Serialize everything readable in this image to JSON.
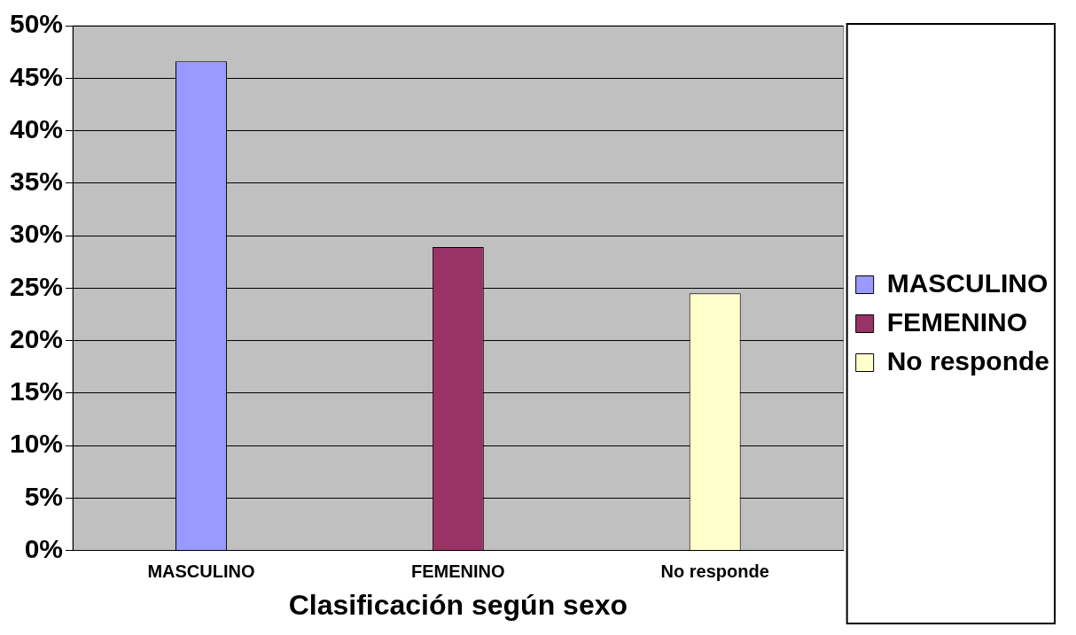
{
  "chart_data": {
    "type": "bar",
    "xlabel": "Clasificación según sexo",
    "categories": [
      "MASCULINO",
      "FEMENINO",
      "No responde"
    ],
    "series": [
      {
        "name": "MASCULINO",
        "color": "#9999ff",
        "values": [
          46.6,
          null,
          null
        ]
      },
      {
        "name": "FEMENINO",
        "color": "#993366",
        "values": [
          null,
          28.9,
          null
        ]
      },
      {
        "name": "No responde",
        "color": "#ffffcc",
        "values": [
          null,
          null,
          24.5
        ]
      }
    ],
    "ylim": [
      0,
      50
    ],
    "yticks": [
      {
        "value": 0,
        "label": "0%"
      },
      {
        "value": 5,
        "label": "5%"
      },
      {
        "value": 10,
        "label": "10%"
      },
      {
        "value": 15,
        "label": "15%"
      },
      {
        "value": 20,
        "label": "20%"
      },
      {
        "value": 25,
        "label": "25%"
      },
      {
        "value": 30,
        "label": "30%"
      },
      {
        "value": 35,
        "label": "35%"
      },
      {
        "value": 40,
        "label": "40%"
      },
      {
        "value": 45,
        "label": "45%"
      },
      {
        "value": 50,
        "label": "50%"
      }
    ],
    "grid": "y",
    "legend": "right"
  }
}
